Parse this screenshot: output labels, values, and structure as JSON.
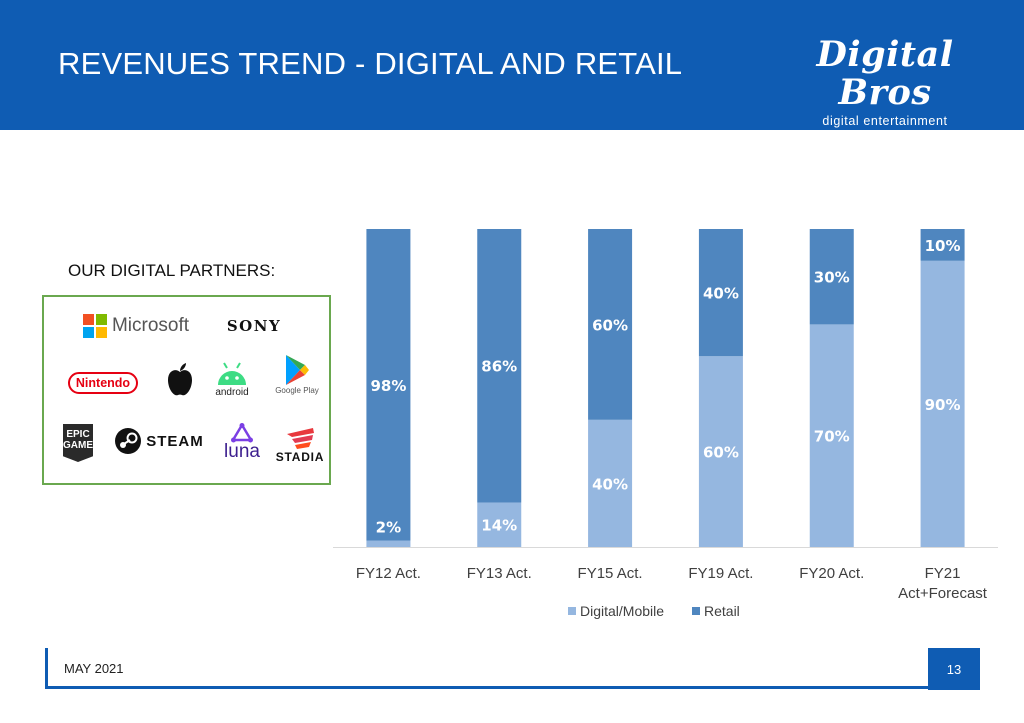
{
  "header": {
    "title": "REVENUES TREND - DIGITAL AND RETAIL",
    "logo_main": "Digital Bros",
    "logo_sub": "digital entertainment"
  },
  "partners": {
    "title": "OUR DIGITAL PARTNERS:",
    "logos": [
      "Microsoft",
      "SONY",
      "Nintendo",
      "android",
      "Google Play",
      "EPIC GAMES",
      "STEAM",
      "luna",
      "STADIA"
    ]
  },
  "colors": {
    "header_blue": "#0f5cb3",
    "digital": "#95b7e0",
    "retail": "#4f86bf",
    "partner_border": "#6aa84f"
  },
  "chart_data": {
    "type": "bar",
    "stacked": true,
    "percent_stacked": true,
    "categories": [
      [
        "FY12 Act."
      ],
      [
        "FY13 Act."
      ],
      [
        "FY15 Act."
      ],
      [
        "FY19 Act."
      ],
      [
        "FY20 Act."
      ],
      [
        "FY21",
        "Act+Forecast"
      ]
    ],
    "series": [
      {
        "name": "Digital/Mobile",
        "values": [
          2,
          14,
          40,
          60,
          70,
          90
        ],
        "labels": [
          "2%",
          "14%",
          "40%",
          "60%",
          "70%",
          "90%"
        ],
        "color": "#95b7e0"
      },
      {
        "name": "Retail",
        "values": [
          98,
          86,
          60,
          40,
          30,
          10
        ],
        "labels": [
          "98%",
          "86%",
          "60%",
          "40%",
          "30%",
          "10%"
        ],
        "color": "#4f86bf"
      }
    ],
    "ylim": [
      0,
      100
    ],
    "legend_position": "bottom",
    "grid": false
  },
  "footer": {
    "date": "MAY 2021",
    "page": "13"
  }
}
